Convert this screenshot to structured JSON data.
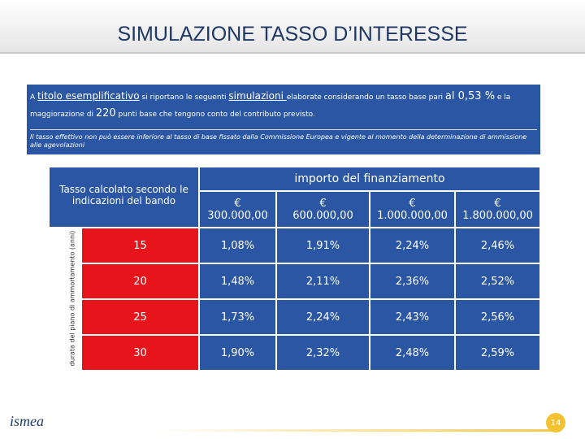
{
  "title": "SIMULAZIONE TASSO D’INTERESSE",
  "intro": {
    "parts": [
      "A ",
      "titolo esemplificativo",
      " si riportano le seguenti ",
      "simulazioni ",
      "elaborate considerando un tasso base pari ",
      "al 0,53 %",
      " e la maggiorazione di ",
      "220",
      " punti base che tengono conto del contributo previsto."
    ],
    "note": "Il tasso effettivo non può essere inferiore al tasso di base fissato dalla Commissione Europea e vigente al momento della determinazione di ammissione alle agevolazioni"
  },
  "table": {
    "corner": "Tasso calcolato secondo le indicazioni del bando",
    "row_axis": "durata del piano di ammortamento (anni)",
    "group_header": "importo del finanziamento",
    "columns": [
      "€ 300.000,00",
      "€      600.000,00",
      "€ 1.000.000,00",
      "€ 1.800.000,00"
    ],
    "rows": [
      {
        "years": "15",
        "rates": [
          "1,08%",
          "1,91%",
          "2,24%",
          "2,46%"
        ]
      },
      {
        "years": "20",
        "rates": [
          "1,48%",
          "2,11%",
          "2,36%",
          "2,52%"
        ]
      },
      {
        "years": "25",
        "rates": [
          "1,73%",
          "2,24%",
          "2,43%",
          "2,56%"
        ]
      },
      {
        "years": "30",
        "rates": [
          "1,90%",
          "2,32%",
          "2,48%",
          "2,59%"
        ]
      }
    ]
  },
  "logo": "ismea",
  "page_number": "14"
}
